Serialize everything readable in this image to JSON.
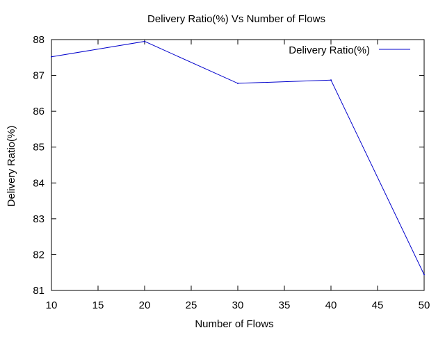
{
  "chart_data": {
    "type": "line",
    "title": "Delivery Ratio(%)  Vs Number of Flows",
    "xlabel": "Number of Flows",
    "ylabel": "Delivery Ratio(%)",
    "xlim": [
      10,
      50
    ],
    "ylim": [
      81,
      88
    ],
    "xticks": [
      "10",
      "15",
      "20",
      "25",
      "30",
      "35",
      "40",
      "45",
      "50"
    ],
    "yticks": [
      "81",
      "82",
      "83",
      "84",
      "85",
      "86",
      "87",
      "88"
    ],
    "grid": false,
    "legend_position": "top-right",
    "series": [
      {
        "name": "Delivery Ratio(%)",
        "color": "#0000cc",
        "x": [
          10,
          20,
          30,
          40,
          50
        ],
        "y": [
          87.52,
          87.95,
          86.78,
          86.87,
          81.44
        ]
      }
    ]
  }
}
